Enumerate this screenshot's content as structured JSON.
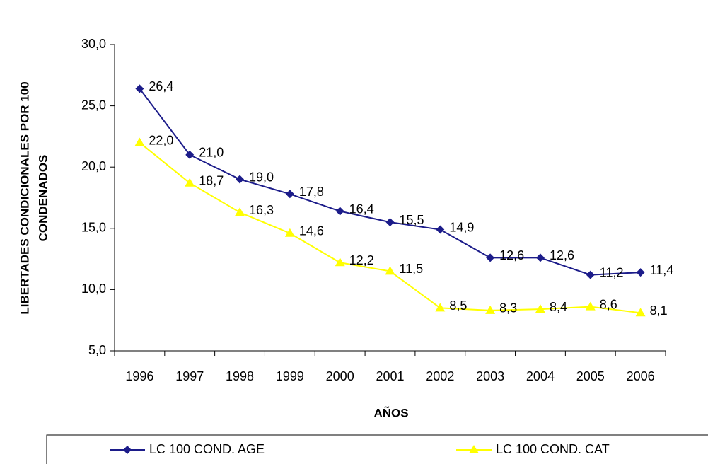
{
  "chart_data": {
    "type": "line",
    "xlabel": "AÑOS",
    "ylabel": [
      "LIBERTADES CONDICIONALES POR 100",
      "CONDENADOS"
    ],
    "categories": [
      "1996",
      "1997",
      "1998",
      "1999",
      "2000",
      "2001",
      "2002",
      "2003",
      "2004",
      "2005",
      "2006"
    ],
    "series": [
      {
        "name": "LC 100 COND. AGE",
        "color": "#1c1c8a",
        "marker": "diamond",
        "values": [
          26.4,
          21.0,
          19.0,
          17.8,
          16.4,
          15.5,
          14.9,
          12.6,
          12.6,
          11.2,
          11.4
        ],
        "value_labels": [
          "26,4",
          "21,0",
          "19,0",
          "17,8",
          "16,4",
          "15,5",
          "14,9",
          "12,6",
          "12,6",
          "11,2",
          "11,4"
        ]
      },
      {
        "name": "LC 100 COND. CAT",
        "color": "#ffff00",
        "marker": "triangle",
        "values": [
          22.0,
          18.7,
          16.3,
          14.6,
          12.2,
          11.5,
          8.5,
          8.3,
          8.4,
          8.6,
          8.1
        ],
        "value_labels": [
          "22,0",
          "18,7",
          "16,3",
          "14,6",
          "12,2",
          "11,5",
          "8,5",
          "8,3",
          "8,4",
          "8,6",
          "8,1"
        ]
      }
    ],
    "ylim": [
      5,
      30
    ],
    "yticks": [
      {
        "value": 5,
        "label": "5,0"
      },
      {
        "value": 10,
        "label": "10,0"
      },
      {
        "value": 15,
        "label": "15,0"
      },
      {
        "value": 20,
        "label": "20,0"
      },
      {
        "value": 25,
        "label": "25,0"
      },
      {
        "value": 30,
        "label": "30,0"
      }
    ],
    "grid": false,
    "legend": "bottom"
  }
}
